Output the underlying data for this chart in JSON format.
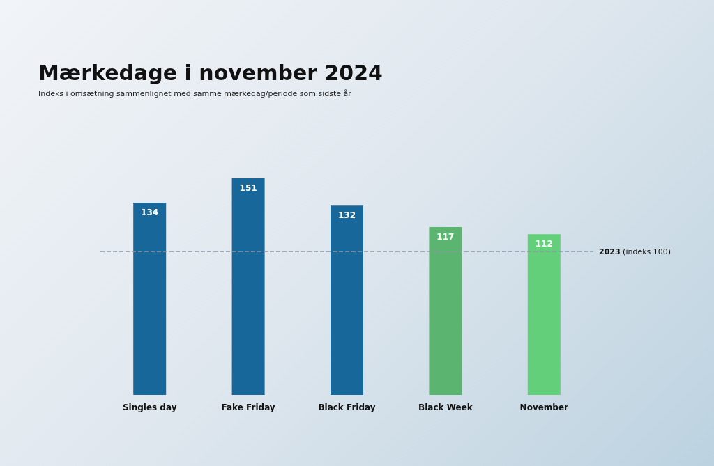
{
  "chart_data": {
    "type": "bar",
    "title": "Mærkedage i november 2024",
    "subtitle": "Indeks i omsætning sammenlignet med samme mærkedag/periode som sidste år",
    "categories": [
      "Singles day",
      "Fake Friday",
      "Black Friday",
      "Black Week",
      "November"
    ],
    "values": [
      134,
      151,
      132,
      117,
      112
    ],
    "colors": [
      "#17679a",
      "#17679a",
      "#17679a",
      "#5bb46f",
      "#63cf7b"
    ],
    "ylim": [
      0,
      151
    ],
    "data_labels": true,
    "ref_lines": [
      {
        "axis": "y",
        "value": 100,
        "label": "2023 (indeks 100)",
        "color": "#8a98a6",
        "line_style": "dashed"
      }
    ]
  }
}
